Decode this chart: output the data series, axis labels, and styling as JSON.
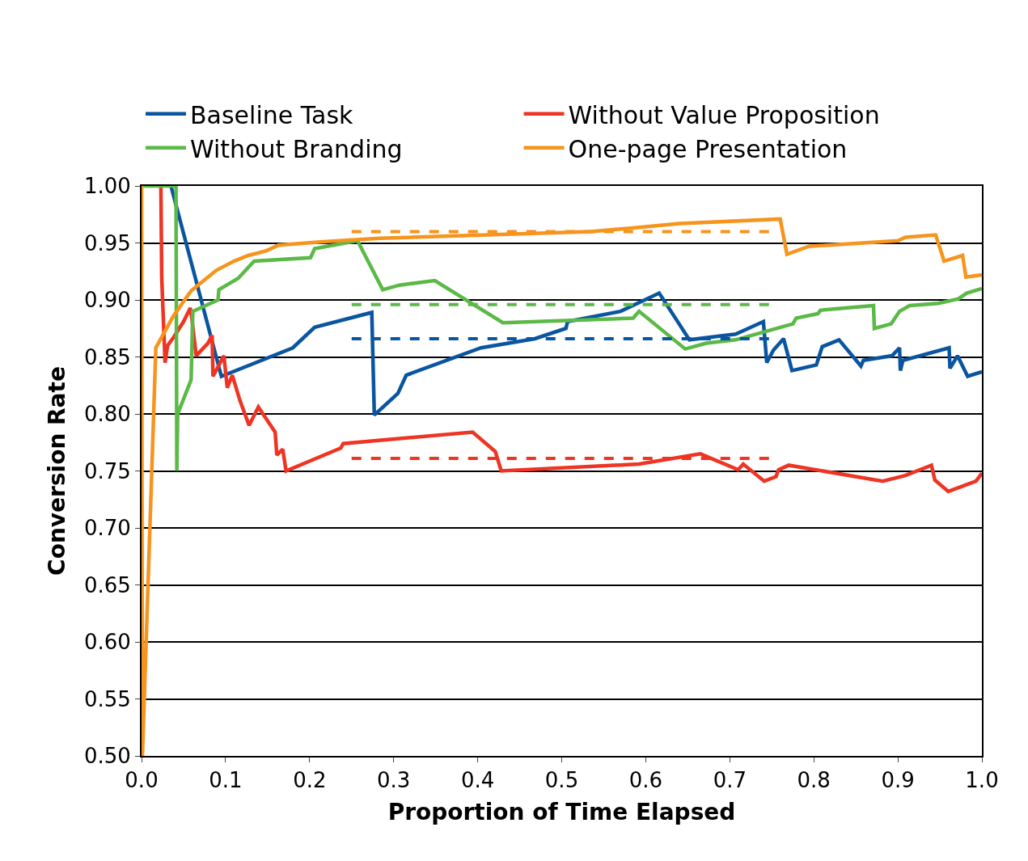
{
  "chart_data": {
    "type": "line",
    "xlabel": "Proportion of Time Elapsed",
    "ylabel": "Conversion Rate",
    "xlim": [
      0,
      1
    ],
    "xticks": [
      {
        "value": 0,
        "label": "0.0"
      },
      0.1,
      0.2,
      0.3,
      0.4,
      0.5,
      0.6,
      0.7,
      0.8,
      0.9,
      {
        "value": 1,
        "label": "1.0"
      }
    ],
    "ylim": [
      0.5,
      1
    ],
    "yticks": [
      {
        "value": 0.5,
        "label": "0.50"
      },
      0.55,
      {
        "value": 0.6,
        "label": "0.60"
      },
      0.65,
      {
        "value": 0.7,
        "label": "0.70"
      },
      0.75,
      {
        "value": 0.8,
        "label": "0.80"
      },
      0.85,
      {
        "value": 0.9,
        "label": "0.90"
      },
      0.95,
      {
        "value": 1,
        "label": "1.00"
      }
    ],
    "grid": "y",
    "legend": "top",
    "line_style": "solid",
    "marker": "none",
    "series": [
      {
        "name": "Baseline Task",
        "color": "#0a55a0",
        "x": [
          0.035,
          0.095,
          0.18,
          0.206,
          0.274,
          0.277,
          0.305,
          0.315,
          0.404,
          0.468,
          0.505,
          0.507,
          0.57,
          0.616,
          0.652,
          0.707,
          0.74,
          0.744,
          0.752,
          0.764,
          0.774,
          0.803,
          0.81,
          0.83,
          0.856,
          0.859,
          0.893,
          0.902,
          0.903,
          0.906,
          0.961,
          0.962,
          0.971,
          0.983,
          1.0
        ],
        "values": [
          1.0,
          0.833,
          0.858,
          0.876,
          0.889,
          0.799,
          0.818,
          0.834,
          0.858,
          0.866,
          0.875,
          0.881,
          0.89,
          0.906,
          0.865,
          0.87,
          0.881,
          0.845,
          0.856,
          0.866,
          0.838,
          0.843,
          0.859,
          0.865,
          0.842,
          0.847,
          0.851,
          0.858,
          0.838,
          0.847,
          0.858,
          0.84,
          0.851,
          0.833,
          0.837
        ]
      },
      {
        "name": "Without Value Proposition",
        "color": "#ee3524",
        "x": [
          0.023,
          0.024,
          0.028,
          0.031,
          0.038,
          0.05,
          0.058,
          0.06,
          0.065,
          0.079,
          0.084,
          0.085,
          0.098,
          0.102,
          0.108,
          0.117,
          0.128,
          0.139,
          0.159,
          0.161,
          0.168,
          0.172,
          0.237,
          0.24,
          0.394,
          0.421,
          0.428,
          0.592,
          0.665,
          0.71,
          0.716,
          0.741,
          0.755,
          0.758,
          0.77,
          0.882,
          0.909,
          0.94,
          0.944,
          0.96,
          0.993,
          1.0
        ],
        "values": [
          1.0,
          0.92,
          0.845,
          0.86,
          0.867,
          0.881,
          0.893,
          0.883,
          0.851,
          0.862,
          0.869,
          0.833,
          0.851,
          0.823,
          0.834,
          0.812,
          0.79,
          0.806,
          0.784,
          0.764,
          0.769,
          0.75,
          0.77,
          0.774,
          0.784,
          0.767,
          0.75,
          0.756,
          0.765,
          0.751,
          0.756,
          0.741,
          0.745,
          0.751,
          0.755,
          0.741,
          0.746,
          0.755,
          0.742,
          0.732,
          0.741,
          0.748
        ]
      },
      {
        "name": "Without Branding",
        "color": "#5bb947",
        "x": [
          0,
          0.041,
          0.042,
          0.043,
          0.059,
          0.061,
          0.091,
          0.092,
          0.115,
          0.134,
          0.201,
          0.206,
          0.257,
          0.287,
          0.307,
          0.349,
          0.43,
          0.585,
          0.592,
          0.647,
          0.672,
          0.707,
          0.775,
          0.779,
          0.805,
          0.808,
          0.871,
          0.872,
          0.892,
          0.902,
          0.914,
          0.948,
          0.972,
          0.982,
          1.0
        ],
        "values": [
          1.0,
          1.0,
          0.75,
          0.8,
          0.83,
          0.89,
          0.9,
          0.909,
          0.919,
          0.934,
          0.937,
          0.945,
          0.952,
          0.909,
          0.913,
          0.917,
          0.88,
          0.884,
          0.89,
          0.857,
          0.862,
          0.865,
          0.879,
          0.884,
          0.888,
          0.891,
          0.895,
          0.875,
          0.879,
          0.89,
          0.895,
          0.897,
          0.901,
          0.906,
          0.91
        ]
      },
      {
        "name": "One-page Presentation",
        "color": "#f7941d",
        "x": [
          0,
          0.001,
          0.017,
          0.038,
          0.059,
          0.089,
          0.11,
          0.127,
          0.148,
          0.163,
          0.216,
          0.283,
          0.534,
          0.582,
          0.64,
          0.76,
          0.768,
          0.794,
          0.9,
          0.909,
          0.945,
          0.955,
          0.977,
          0.981,
          1.0
        ],
        "values": [
          1.0,
          0.5,
          0.858,
          0.886,
          0.908,
          0.926,
          0.934,
          0.939,
          0.943,
          0.948,
          0.951,
          0.954,
          0.96,
          0.963,
          0.967,
          0.971,
          0.94,
          0.947,
          0.952,
          0.955,
          0.957,
          0.934,
          0.939,
          0.92,
          0.922
        ]
      },
      {
        "color": "#f7941d",
        "line_style": "dashed",
        "x": [
          0.25,
          0.75
        ],
        "values": [
          0.96,
          0.96
        ]
      },
      {
        "color": "#5bb947",
        "line_style": "dashed",
        "x": [
          0.25,
          0.75
        ],
        "values": [
          0.896,
          0.896
        ]
      },
      {
        "color": "#0a55a0",
        "line_style": "dashed",
        "x": [
          0.25,
          0.75
        ],
        "values": [
          0.866,
          0.866
        ]
      },
      {
        "color": "#ee3524",
        "line_style": "dashed",
        "x": [
          0.25,
          0.75
        ],
        "values": [
          0.761,
          0.761
        ]
      }
    ]
  }
}
